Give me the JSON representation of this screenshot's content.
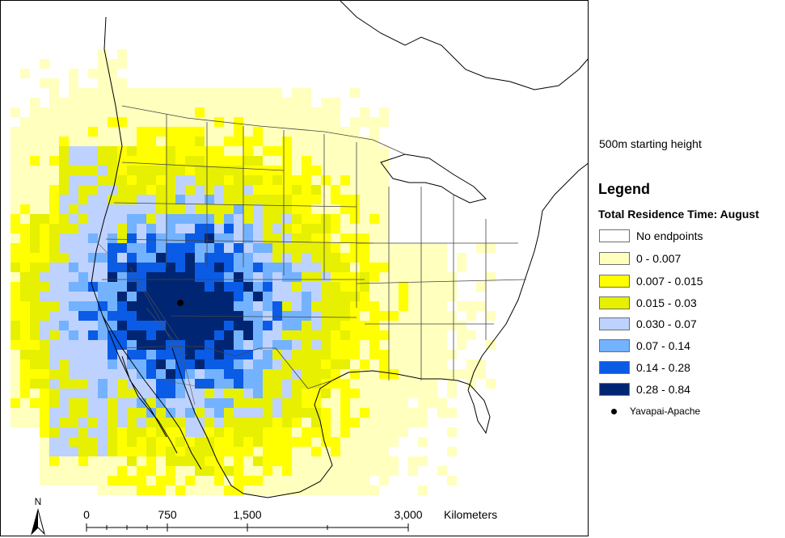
{
  "map": {
    "subtitle": "500m starting height",
    "legend": {
      "title": "Legend",
      "field": "Total Residence Time: August",
      "classes": [
        {
          "label": "No endpoints",
          "color": "#ffffff"
        },
        {
          "label": "0 - 0.007",
          "color": "#ffffbe"
        },
        {
          "label": "0.007 - 0.015",
          "color": "#ffff00"
        },
        {
          "label": "0.015 - 0.03",
          "color": "#e6f000"
        },
        {
          "label": "0.030 - 0.07",
          "color": "#bed2ff"
        },
        {
          "label": "0.07 - 0.14",
          "color": "#73b2ff"
        },
        {
          "label": "0.14 - 0.28",
          "color": "#0a5ce6"
        },
        {
          "label": "0.28 - 0.84",
          "color": "#002673"
        }
      ],
      "point": {
        "label": "Yavapai-Apache",
        "color": "#000000"
      }
    },
    "scale_bar": {
      "ticks": [
        "0",
        "750",
        "1,500",
        "3,000"
      ],
      "unit": "Kilometers"
    },
    "north_arrow": {
      "label": "N"
    }
  }
}
